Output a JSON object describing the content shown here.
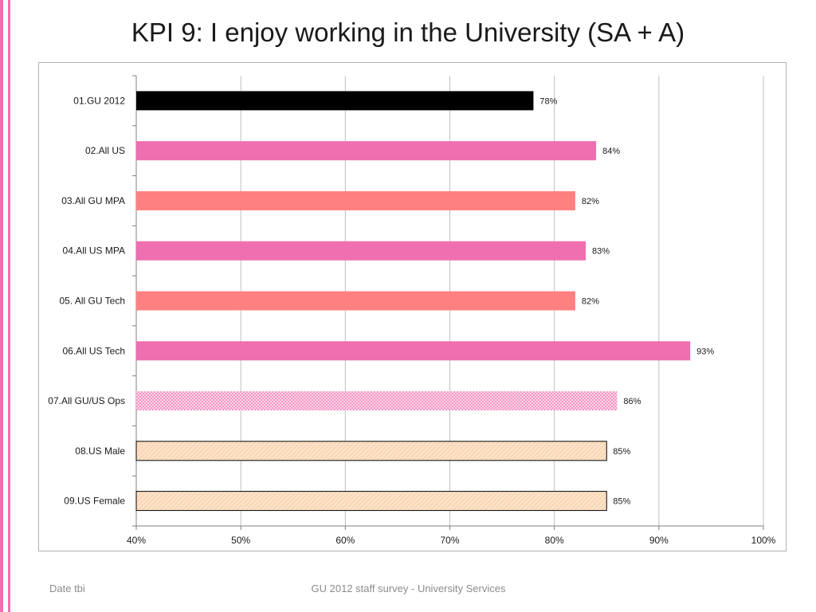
{
  "title": "KPI 9: I enjoy working in the University (SA + A)",
  "footer": {
    "left": "Date tbi",
    "center": "GU 2012 staff survey -  University Services"
  },
  "colors": {
    "accent_bar": "#ef6fb0",
    "black": "#000000",
    "pink": "#ef6fb0",
    "salmon": "#ff8080",
    "peach": "#fde3c8"
  },
  "chart_data": {
    "type": "bar",
    "orientation": "horizontal",
    "categories": [
      "01.GU 2012",
      "02.All US",
      "03.All GU MPA",
      "04.All US MPA",
      "05. All GU Tech",
      "06.All US Tech",
      "07.All GU/US Ops",
      "08.US Male",
      "09.US Female"
    ],
    "values": [
      78,
      84,
      82,
      83,
      82,
      93,
      86,
      85,
      85
    ],
    "value_labels": [
      "78%",
      "84%",
      "82%",
      "83%",
      "82%",
      "93%",
      "86%",
      "85%",
      "85%"
    ],
    "bar_styles": [
      {
        "fill": "#000000",
        "pattern": "solid",
        "outline": false
      },
      {
        "fill": "#ef6fb0",
        "pattern": "solid",
        "outline": false
      },
      {
        "fill": "#ff8080",
        "pattern": "solid",
        "outline": false
      },
      {
        "fill": "#ef6fb0",
        "pattern": "solid",
        "outline": false
      },
      {
        "fill": "#ff8080",
        "pattern": "solid",
        "outline": false
      },
      {
        "fill": "#ef6fb0",
        "pattern": "solid",
        "outline": false
      },
      {
        "fill": "#ef6fb0",
        "pattern": "dotted",
        "outline": false
      },
      {
        "fill": "#fde3c8",
        "pattern": "hatched",
        "outline": true
      },
      {
        "fill": "#fde3c8",
        "pattern": "hatched",
        "outline": true
      }
    ],
    "xlim": [
      40,
      100
    ],
    "x_ticks": [
      40,
      50,
      60,
      70,
      80,
      90,
      100
    ],
    "x_tick_labels": [
      "40%",
      "50%",
      "60%",
      "70%",
      "80%",
      "90%",
      "100%"
    ],
    "grid": true,
    "title": "",
    "xlabel": "",
    "ylabel": ""
  }
}
